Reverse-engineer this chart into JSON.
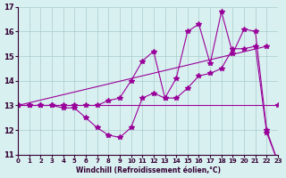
{
  "xlabel": "Windchill (Refroidissement éolien,°C)",
  "bg_color": "#d9f0f0",
  "line_color": "#990099",
  "grid_color": "#aacccc",
  "x_min": 0,
  "x_max": 23,
  "y_min": 11,
  "y_max": 17,
  "series1_x": [
    0,
    1,
    2,
    3,
    4,
    5,
    6,
    7,
    8,
    9,
    10,
    11,
    12,
    13,
    14,
    15,
    16,
    17,
    18,
    19,
    20,
    21,
    22,
    23
  ],
  "series1_y": [
    13,
    13,
    13,
    13,
    12.9,
    12.9,
    12.5,
    12.1,
    11.8,
    11.7,
    12.1,
    13.3,
    13.5,
    13.3,
    13.3,
    13.7,
    14.2,
    14.3,
    14.5,
    15.3,
    15.3,
    15.4,
    11.9,
    10.7
  ],
  "series2_x": [
    0,
    1,
    2,
    3,
    4,
    5,
    6,
    7,
    8,
    9,
    10,
    11,
    12,
    13,
    14,
    15,
    16,
    17,
    18,
    19,
    20,
    21,
    22,
    23
  ],
  "series2_y": [
    13,
    13,
    13,
    13,
    13.0,
    13.0,
    13.0,
    13.0,
    13.2,
    13.3,
    14.0,
    14.8,
    15.2,
    13.3,
    14.1,
    16.0,
    16.3,
    14.7,
    16.8,
    15.1,
    16.1,
    16.0,
    12.0,
    10.7
  ],
  "series3_x": [
    0,
    23
  ],
  "series3_y": [
    13,
    13
  ],
  "series4_x": [
    0,
    22
  ],
  "series4_y": [
    13,
    15.4
  ]
}
